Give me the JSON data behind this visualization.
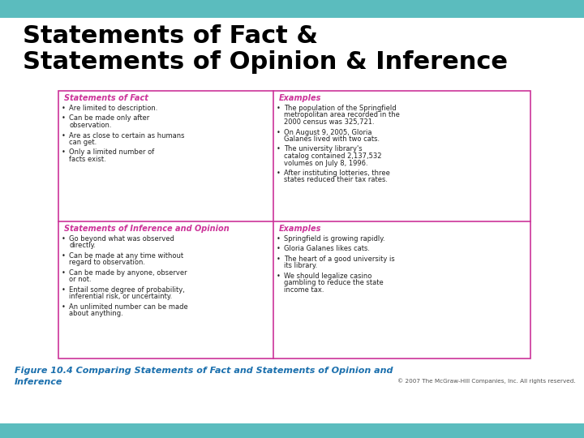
{
  "title_line1": "Statements of Fact &",
  "title_line2": "Statements of Opinion & Inference",
  "title_color": "#000000",
  "title_fontsize": 22,
  "bg_color": "#ffffff",
  "teal_color": "#5bbcbe",
  "pink_color": "#cc3399",
  "body_color": "#222222",
  "caption_color": "#1a6fad",
  "copyright_color": "#555555",
  "caption_line1": "Figure 10.4 Comparing Statements of Fact and Statements of Opinion and",
  "caption_line2": "Inference",
  "copyright": "© 2007 The McGraw-Hill Companies, Inc. All rights reserved.",
  "table_header_left": "Statements of Fact",
  "table_header_right": "Examples",
  "table_header2_left": "Statements of Inference and Opinion",
  "table_header2_right": "Examples",
  "fact_bullets": [
    "Are limited to description.",
    "Can be made only after\nobservation.",
    "Are as close to certain as humans\ncan get.",
    "Only a limited number of\nfacts exist."
  ],
  "fact_examples": [
    "The population of the Springfield\nmetropolitan area recorded in the\n2000 census was 325,721.",
    "On August 9, 2005, Gloria\nGalanes lived with two cats.",
    "The university library's\ncatalog contained 2,137,532\nvolumes on July 8, 1996.",
    "After instituting lotteries, three\nstates reduced their tax rates."
  ],
  "opinion_bullets": [
    "Go beyond what was observed\ndirectly.",
    "Can be made at any time without\nregard to observation.",
    "Can be made by anyone, observer\nor not.",
    "Entail some degree of probability,\ninferential risk, or uncertainty.",
    "An unlimited number can be made\nabout anything."
  ],
  "opinion_examples": [
    "Springfield is growing rapidly.",
    "Gloria Galanes likes cats.",
    "The heart of a good university is\nits library.",
    "We should legalize casino\ngambling to reduce the state\nincome tax."
  ]
}
